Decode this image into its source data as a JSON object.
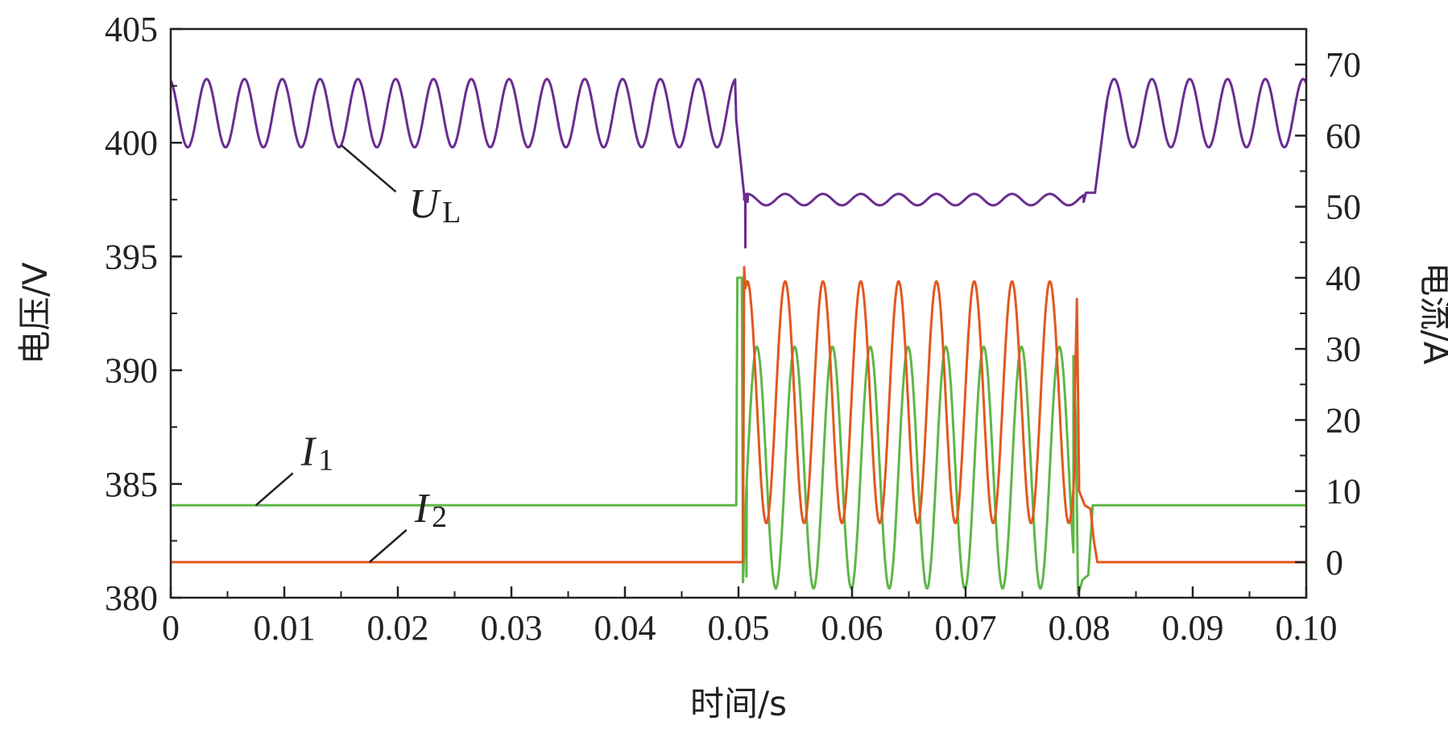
{
  "chart_data": {
    "type": "line",
    "title": "",
    "xlabel": "时间/s",
    "ylabel_left": "电压/V",
    "ylabel_right": "电流/A",
    "xlim": [
      0,
      0.1
    ],
    "ylim_left": [
      380,
      405
    ],
    "ylim_right": [
      -5,
      75
    ],
    "x_ticks": [
      0,
      0.01,
      0.02,
      0.03,
      0.04,
      0.05,
      0.06,
      0.07,
      0.08,
      0.09,
      0.1
    ],
    "x_tick_labels": [
      "0",
      "0.01",
      "0.02",
      "0.03",
      "0.04",
      "0.05",
      "0.06",
      "0.07",
      "0.08",
      "0.09",
      "0.10"
    ],
    "y_left_ticks": [
      380,
      385,
      390,
      395,
      400,
      405
    ],
    "y_left_tick_labels": [
      "380",
      "385",
      "390",
      "395",
      "400",
      "405"
    ],
    "y_right_ticks": [
      0,
      10,
      20,
      30,
      40,
      50,
      60,
      70
    ],
    "y_right_tick_labels": [
      "0",
      "10",
      "20",
      "30",
      "40",
      "50",
      "60",
      "70"
    ],
    "grid": false,
    "colors": {
      "UL": "#6a2c91",
      "I1": "#5fb648",
      "I2": "#e2581f"
    },
    "annotations": [
      {
        "main": "U",
        "sub": "L",
        "series": "UL",
        "anchor": [
          0.015,
          399.9
        ]
      },
      {
        "main": "I",
        "sub": "1",
        "series": "I1",
        "anchor": [
          0.0075,
          8.0
        ]
      },
      {
        "main": "I",
        "sub": "2",
        "series": "I2",
        "anchor": [
          0.0175,
          0.0
        ]
      }
    ],
    "series": [
      {
        "key": "UL",
        "axis": "left",
        "segments": [
          {
            "x0": 0.0,
            "x1": 0.0497,
            "base": 401.3,
            "amp": 1.5,
            "period": 0.00333,
            "phase": 0.3
          },
          {
            "x0": 0.0505,
            "x1": 0.0804,
            "base": 397.5,
            "amp": 0.25,
            "period": 0.00333,
            "phase": 0.0
          },
          {
            "x0": 0.0824,
            "x1": 0.1,
            "base": 401.3,
            "amp": 1.5,
            "period": 0.00333,
            "phase": 0.3
          }
        ],
        "events": [
          {
            "x": 0.0498,
            "y": 401.0
          },
          {
            "x": 0.0505,
            "y": 397.5
          },
          {
            "x": 0.0506,
            "y": 395.4
          },
          {
            "x": 0.0508,
            "y": 397.4
          },
          {
            "x": 0.0804,
            "y": 397.4
          },
          {
            "x": 0.0806,
            "y": 397.8
          },
          {
            "x": 0.0814,
            "y": 397.8
          },
          {
            "x": 0.0824,
            "y": 401.5
          }
        ]
      },
      {
        "key": "I1",
        "axis": "right",
        "segments": [
          {
            "x0": 0.0,
            "x1": 0.0498,
            "base": 8.0,
            "amp": 0.0,
            "period": 0.00333,
            "phase": 0.0
          },
          {
            "x0": 0.0507,
            "x1": 0.0795,
            "base": 13.3,
            "amp": 17.0,
            "period": 0.00333,
            "phase": 0.75
          },
          {
            "x0": 0.0815,
            "x1": 0.1,
            "base": 8.0,
            "amp": 0.0,
            "period": 0.00333,
            "phase": 0.0
          }
        ],
        "events": [
          {
            "x": 0.0498,
            "y": 8.0
          },
          {
            "x": 0.0499,
            "y": 40.0
          },
          {
            "x": 0.0503,
            "y": 40.0
          },
          {
            "x": 0.0504,
            "y": -2.8
          },
          {
            "x": 0.0507,
            "y": -2.0
          },
          {
            "x": 0.0795,
            "y": 29.0
          },
          {
            "x": 0.0797,
            "y": 20.0
          },
          {
            "x": 0.0799,
            "y": -4.5
          },
          {
            "x": 0.0803,
            "y": -2.5
          },
          {
            "x": 0.0808,
            "y": -1.8
          },
          {
            "x": 0.0812,
            "y": 8.0
          }
        ]
      },
      {
        "key": "I2",
        "axis": "right",
        "segments": [
          {
            "x0": 0.0,
            "x1": 0.0504,
            "base": 0.0,
            "amp": 0.0,
            "period": 0.00333,
            "phase": 0.0
          },
          {
            "x0": 0.0506,
            "x1": 0.0796,
            "base": 22.5,
            "amp": 17.0,
            "period": 0.00333,
            "phase": 0.0
          },
          {
            "x0": 0.0816,
            "x1": 0.1,
            "base": 0.0,
            "amp": 0.0,
            "period": 0.00333,
            "phase": 0.0
          }
        ],
        "events": [
          {
            "x": 0.0504,
            "y": 0.0
          },
          {
            "x": 0.0505,
            "y": 41.5
          },
          {
            "x": 0.0508,
            "y": 39.0
          },
          {
            "x": 0.0796,
            "y": 22.0
          },
          {
            "x": 0.0798,
            "y": 37.0
          },
          {
            "x": 0.08,
            "y": 10.0
          },
          {
            "x": 0.0805,
            "y": 8.0
          },
          {
            "x": 0.081,
            "y": 7.5
          },
          {
            "x": 0.0813,
            "y": 3.0
          },
          {
            "x": 0.0816,
            "y": 0.0
          }
        ]
      }
    ]
  }
}
